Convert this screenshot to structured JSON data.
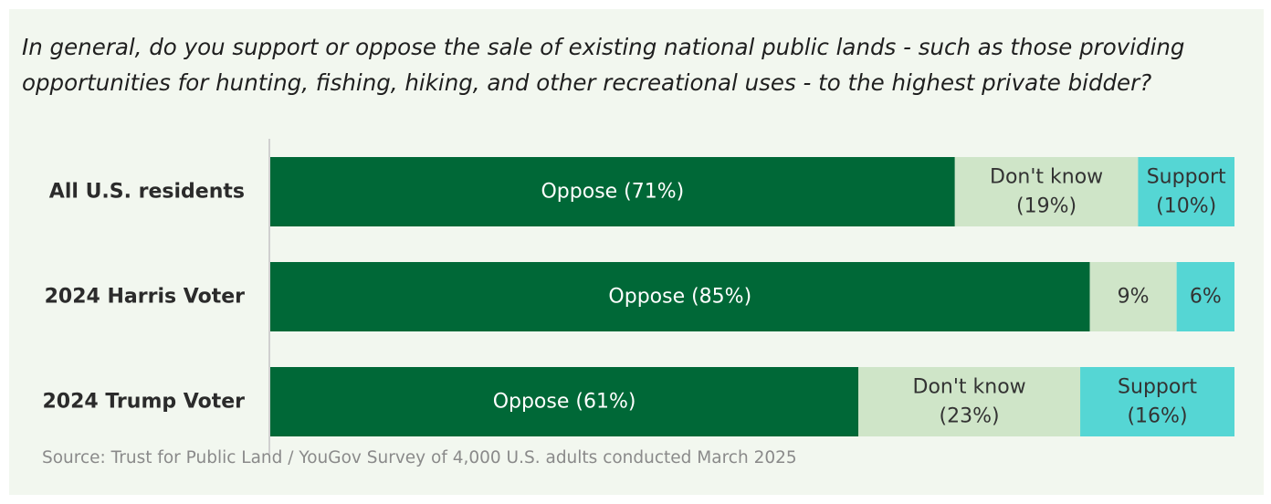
{
  "title": "In general, do you support or oppose the sale of existing national public lands - such as those providing opportunities for hunting, fishing, hiking, and other recreational uses - to the highest private bidder?",
  "source": "Source: Trust for Public Land / YouGov Survey of 4,000 U.S. adults conducted March 2025",
  "colors": {
    "panel_bg": "#f2f7ef",
    "oppose": "#006837",
    "dont_know": "#cfe5c8",
    "support": "#55d6d4"
  },
  "chart_data": {
    "type": "bar",
    "orientation": "horizontal",
    "stacked": true,
    "normalized": true,
    "title": "In general, do you support or oppose the sale of existing national public lands - such as those providing opportunities for hunting, fishing, hiking, and other recreational uses - to the highest private bidder?",
    "categories": [
      "All U.S. residents",
      "2024 Harris Voter",
      "2024 Trump Voter"
    ],
    "series": [
      {
        "name": "Oppose",
        "values": [
          71,
          85,
          61
        ],
        "color": "#006837",
        "labels": [
          [
            "Oppose (71%)"
          ],
          [
            "Oppose (85%)"
          ],
          [
            "Oppose (61%)"
          ]
        ]
      },
      {
        "name": "Don't know",
        "values": [
          19,
          9,
          23
        ],
        "color": "#cfe5c8",
        "labels": [
          [
            "Don't know",
            "(19%)"
          ],
          [
            "9%"
          ],
          [
            "Don't know",
            "(23%)"
          ]
        ]
      },
      {
        "name": "Support",
        "values": [
          10,
          6,
          16
        ],
        "color": "#55d6d4",
        "labels": [
          [
            "Support",
            "(10%)"
          ],
          [
            "6%"
          ],
          [
            "Support",
            "(16%)"
          ]
        ]
      }
    ],
    "xlim": [
      0,
      100
    ],
    "grid": false,
    "legend": "none",
    "source": "Source: Trust for Public Land / YouGov Survey of 4,000 U.S. adults conducted March 2025"
  }
}
